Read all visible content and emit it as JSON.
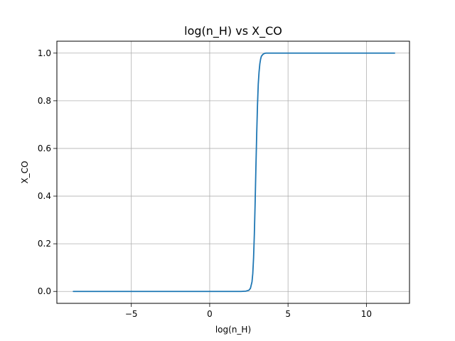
{
  "chart_data": {
    "type": "line",
    "title": "log(n_H) vs X_CO",
    "xlabel": "log(n_H)",
    "ylabel": "X_CO",
    "xlim": [
      -9.75,
      12.75
    ],
    "ylim": [
      -0.05,
      1.05
    ],
    "xticks": [
      -5,
      0,
      5,
      10
    ],
    "xtick_labels": [
      "−5",
      "0",
      "5",
      "10"
    ],
    "yticks": [
      0.0,
      0.2,
      0.4,
      0.6,
      0.8,
      1.0
    ],
    "ytick_labels": [
      "0.0",
      "0.2",
      "0.4",
      "0.6",
      "0.8",
      "1.0"
    ],
    "grid": true,
    "series": [
      {
        "color": "#1f77b4",
        "x": [
          -8.7,
          -6,
          -4,
          -2,
          0,
          1,
          2,
          2.3,
          2.5,
          2.6,
          2.7,
          2.75,
          2.8,
          2.85,
          2.9,
          2.95,
          3.0,
          3.05,
          3.1,
          3.15,
          3.2,
          3.25,
          3.3,
          3.4,
          3.5,
          3.6,
          4,
          6,
          8,
          10,
          11.8
        ],
        "y": [
          0,
          0,
          0,
          0,
          0,
          0,
          0,
          0.001,
          0.005,
          0.013,
          0.04,
          0.075,
          0.14,
          0.24,
          0.37,
          0.52,
          0.66,
          0.78,
          0.87,
          0.92,
          0.955,
          0.975,
          0.987,
          0.995,
          0.999,
          1.0,
          1.0,
          1.0,
          1.0,
          1.0,
          1.0
        ]
      }
    ]
  }
}
